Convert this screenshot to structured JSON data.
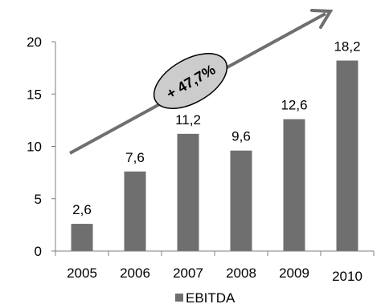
{
  "chart_data": {
    "type": "bar",
    "categories": [
      "2005",
      "2006",
      "2007",
      "2008",
      "2009",
      "2010"
    ],
    "series": [
      {
        "name": "EBITDA",
        "values": [
          2.6,
          7.6,
          11.2,
          9.6,
          12.6,
          18.2
        ]
      }
    ],
    "data_labels": [
      "2,6",
      "7,6",
      "11,2",
      "9,6",
      "12,6",
      "18,2"
    ],
    "y_ticks": [
      "0",
      "5",
      "10",
      "15",
      "20"
    ],
    "ylim": [
      0,
      20
    ],
    "title": "",
    "xlabel": "",
    "ylabel": "",
    "legend": {
      "position": "bottom",
      "entries": [
        "EBITDA"
      ]
    },
    "annotation": {
      "text": "+ 47,7%",
      "type": "growth-arrow"
    },
    "grid": false,
    "colors": {
      "bar": "#6f6f6f",
      "arrow": "#6f6f6f",
      "badge_fill": "#cccccc",
      "axis": "#7f7f7f",
      "text": "#000000"
    }
  }
}
